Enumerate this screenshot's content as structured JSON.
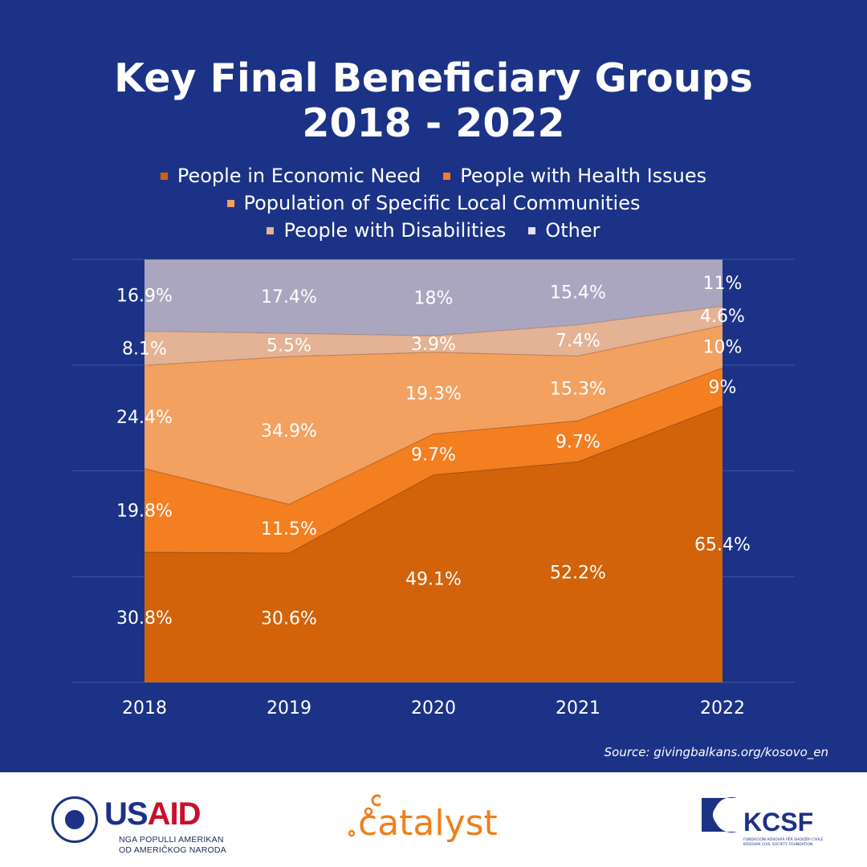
{
  "title_line1": "Key Final Beneficiary Groups",
  "title_line2": "2018 - 2022",
  "source": "Source: givingbalkans.org/kosovo_en",
  "colors": {
    "background": "#1c3286",
    "gridline": "#3e55a3",
    "label_text": "#ffffff"
  },
  "chart_data": {
    "type": "area",
    "stacked": true,
    "percent_stacked": true,
    "categories": [
      "2018",
      "2019",
      "2020",
      "2021",
      "2022"
    ],
    "ylim": [
      0,
      100
    ],
    "grid": true,
    "legend_placement": "top",
    "series": [
      {
        "name": "People in Economic Need",
        "color": "#d2630b",
        "values": [
          30.8,
          30.6,
          49.1,
          52.2,
          65.4
        ],
        "labels": [
          "30.8%",
          "30.6%",
          "49.1%",
          "52.2%",
          "65.4%"
        ]
      },
      {
        "name": "People with Health Issues",
        "color": "#f37f21",
        "values": [
          19.8,
          11.5,
          9.7,
          9.7,
          9
        ],
        "labels": [
          "19.8%",
          "11.5%",
          "9.7%",
          "9.7%",
          "9%"
        ]
      },
      {
        "name": "Population of Specific Local Communities",
        "color": "#f3a161",
        "values": [
          24.4,
          34.9,
          19.3,
          15.3,
          10
        ],
        "labels": [
          "24.4%",
          "34.9%",
          "19.3%",
          "15.3%",
          "10%"
        ]
      },
      {
        "name": "People with Disabilities",
        "color": "#e4b294",
        "values": [
          8.1,
          5.5,
          3.9,
          7.4,
          4.6
        ],
        "labels": [
          "8.1%",
          "5.5%",
          "3.9%",
          "7.4%",
          "4.6%"
        ]
      },
      {
        "name": "Other",
        "color": "#aba6c0",
        "values": [
          16.9,
          17.4,
          18,
          15.4,
          11
        ],
        "labels": [
          "16.9%",
          "17.4%",
          "18%",
          "15.4%",
          "11%"
        ]
      }
    ]
  },
  "logos": {
    "usaid": {
      "word_us": "US",
      "word_aid": "AID",
      "sub_line1": "NGA POPULLI AMERIKAN",
      "sub_line2": "OD AMERIČKOG NARODA"
    },
    "catalyst": {
      "word": "catalyst"
    },
    "kcsf": {
      "word": "KCSF",
      "sub_line1": "FONDACIONI KOSOVAR PËR SHOQËRI CIVILE",
      "sub_line2": "KOSOVAR CIVIL SOCIETY FOUNDATION"
    }
  }
}
